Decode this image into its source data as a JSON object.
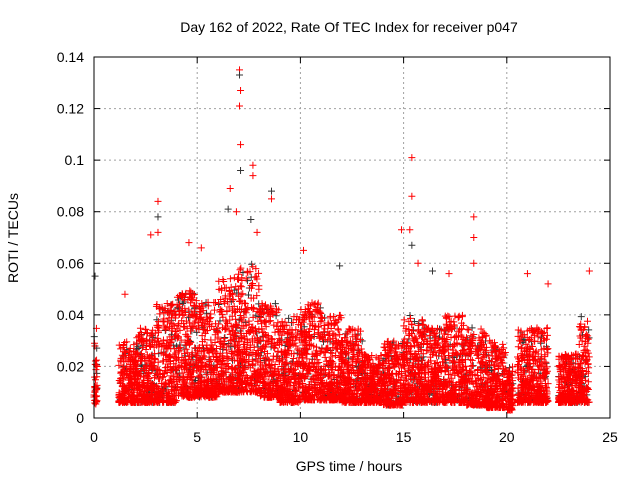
{
  "chart_data": {
    "type": "scatter",
    "title": "Day 162 of 2022, Rate Of TEC Index for receiver p047",
    "xlabel": "GPS time / hours",
    "ylabel": "ROTI / TECUs",
    "xlim": [
      0,
      25
    ],
    "ylim": [
      0,
      0.14
    ],
    "xticks": [
      "0",
      "5",
      "10",
      "15",
      "20",
      "25"
    ],
    "xtick_values": [
      0,
      5,
      10,
      15,
      20,
      25
    ],
    "yticks": [
      "0",
      "0.02",
      "0.04",
      "0.06",
      "0.08",
      "0.1",
      "0.12",
      "0.14"
    ],
    "ytick_values": [
      0,
      0.02,
      0.04,
      0.06,
      0.08,
      0.1,
      0.12,
      0.14
    ],
    "grid": true,
    "marker": "plus",
    "colors": {
      "primary": "#ff0000",
      "secondary": "#333333",
      "grid": "#a0a0a0"
    },
    "density_bands": [
      [
        0.0,
        0.15,
        0.005,
        0.035
      ],
      [
        1.2,
        2,
        0.006,
        0.03
      ],
      [
        2,
        3,
        0.006,
        0.035
      ],
      [
        3,
        4,
        0.006,
        0.045
      ],
      [
        4,
        5,
        0.008,
        0.05
      ],
      [
        5,
        6,
        0.008,
        0.045
      ],
      [
        6,
        7,
        0.01,
        0.055
      ],
      [
        7,
        8,
        0.01,
        0.06
      ],
      [
        8,
        9,
        0.008,
        0.045
      ],
      [
        9,
        10,
        0.006,
        0.04
      ],
      [
        10,
        11,
        0.007,
        0.045
      ],
      [
        11,
        12,
        0.007,
        0.04
      ],
      [
        12,
        13,
        0.006,
        0.035
      ],
      [
        13,
        14,
        0.006,
        0.025
      ],
      [
        14,
        15,
        0.005,
        0.03
      ],
      [
        15,
        16,
        0.006,
        0.04
      ],
      [
        16,
        17,
        0.006,
        0.035
      ],
      [
        17,
        18,
        0.006,
        0.04
      ],
      [
        18,
        19,
        0.005,
        0.035
      ],
      [
        19,
        20,
        0.004,
        0.03
      ],
      [
        20,
        20.3,
        0.003,
        0.02
      ],
      [
        20.5,
        22,
        0.006,
        0.035
      ],
      [
        22.5,
        23.5,
        0.006,
        0.025
      ],
      [
        23.5,
        24,
        0.006,
        0.04
      ]
    ],
    "outliers": [
      [
        7.05,
        0.135
      ],
      [
        7.05,
        0.133
      ],
      [
        7.1,
        0.127
      ],
      [
        7.05,
        0.121
      ],
      [
        7.1,
        0.106
      ],
      [
        7.1,
        0.096
      ],
      [
        7.7,
        0.098
      ],
      [
        7.7,
        0.094
      ],
      [
        3.1,
        0.084
      ],
      [
        3.1,
        0.078
      ],
      [
        3.1,
        0.072
      ],
      [
        2.75,
        0.071
      ],
      [
        6.6,
        0.089
      ],
      [
        6.5,
        0.081
      ],
      [
        15.4,
        0.101
      ],
      [
        15.4,
        0.086
      ],
      [
        15.3,
        0.073
      ],
      [
        15.4,
        0.067
      ],
      [
        18.4,
        0.078
      ],
      [
        18.4,
        0.07
      ],
      [
        18.4,
        0.06
      ],
      [
        8.6,
        0.088
      ],
      [
        8.6,
        0.085
      ],
      [
        10.15,
        0.065
      ],
      [
        14.9,
        0.073
      ],
      [
        0.05,
        0.055
      ],
      [
        1.5,
        0.048
      ],
      [
        24,
        0.057
      ],
      [
        21,
        0.056
      ],
      [
        11.9,
        0.059
      ],
      [
        17.2,
        0.056
      ],
      [
        22,
        0.052
      ],
      [
        15.7,
        0.06
      ],
      [
        16.4,
        0.057
      ],
      [
        4.6,
        0.068
      ],
      [
        5.2,
        0.066
      ],
      [
        6.9,
        0.08
      ],
      [
        7.6,
        0.077
      ],
      [
        7.9,
        0.072
      ]
    ]
  }
}
